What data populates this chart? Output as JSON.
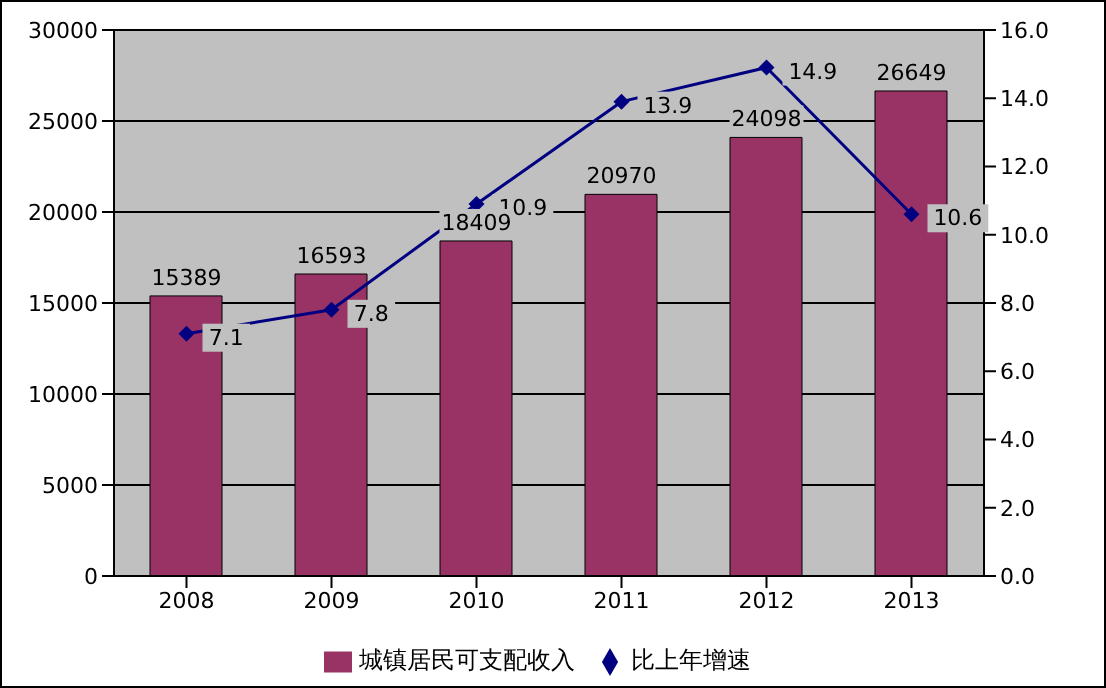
{
  "chart_data": {
    "type": "bar",
    "categories": [
      "2008",
      "2009",
      "2010",
      "2011",
      "2012",
      "2013"
    ],
    "series": [
      {
        "name": "城镇居民可支配收入",
        "type": "bar",
        "color": "#993366",
        "values": [
          15389,
          16593,
          18409,
          20970,
          24098,
          26649
        ]
      },
      {
        "name": "比上年增速",
        "type": "line",
        "axis": "y2",
        "color": "#000080",
        "values": [
          7.1,
          7.8,
          10.9,
          13.9,
          14.9,
          10.6
        ]
      }
    ],
    "ylim": [
      0,
      30000
    ],
    "yticks": [
      0,
      5000,
      10000,
      15000,
      20000,
      25000,
      30000
    ],
    "y2lim": [
      0,
      16
    ],
    "y2ticks": [
      {
        "value": 0,
        "label": "0.0"
      },
      {
        "value": 2,
        "label": "2.0"
      },
      {
        "value": 4,
        "label": "4.0"
      },
      {
        "value": 6,
        "label": "6.0"
      },
      {
        "value": 8,
        "label": "8.0"
      },
      {
        "value": 10,
        "label": "10.0"
      },
      {
        "value": 12,
        "label": "12.0"
      },
      {
        "value": 14,
        "label": "14.0"
      },
      {
        "value": 16,
        "label": "16.0"
      }
    ],
    "grid": "y",
    "legend": "bottom",
    "marker": "diamond",
    "line_style": "solid",
    "data_labels": true
  }
}
